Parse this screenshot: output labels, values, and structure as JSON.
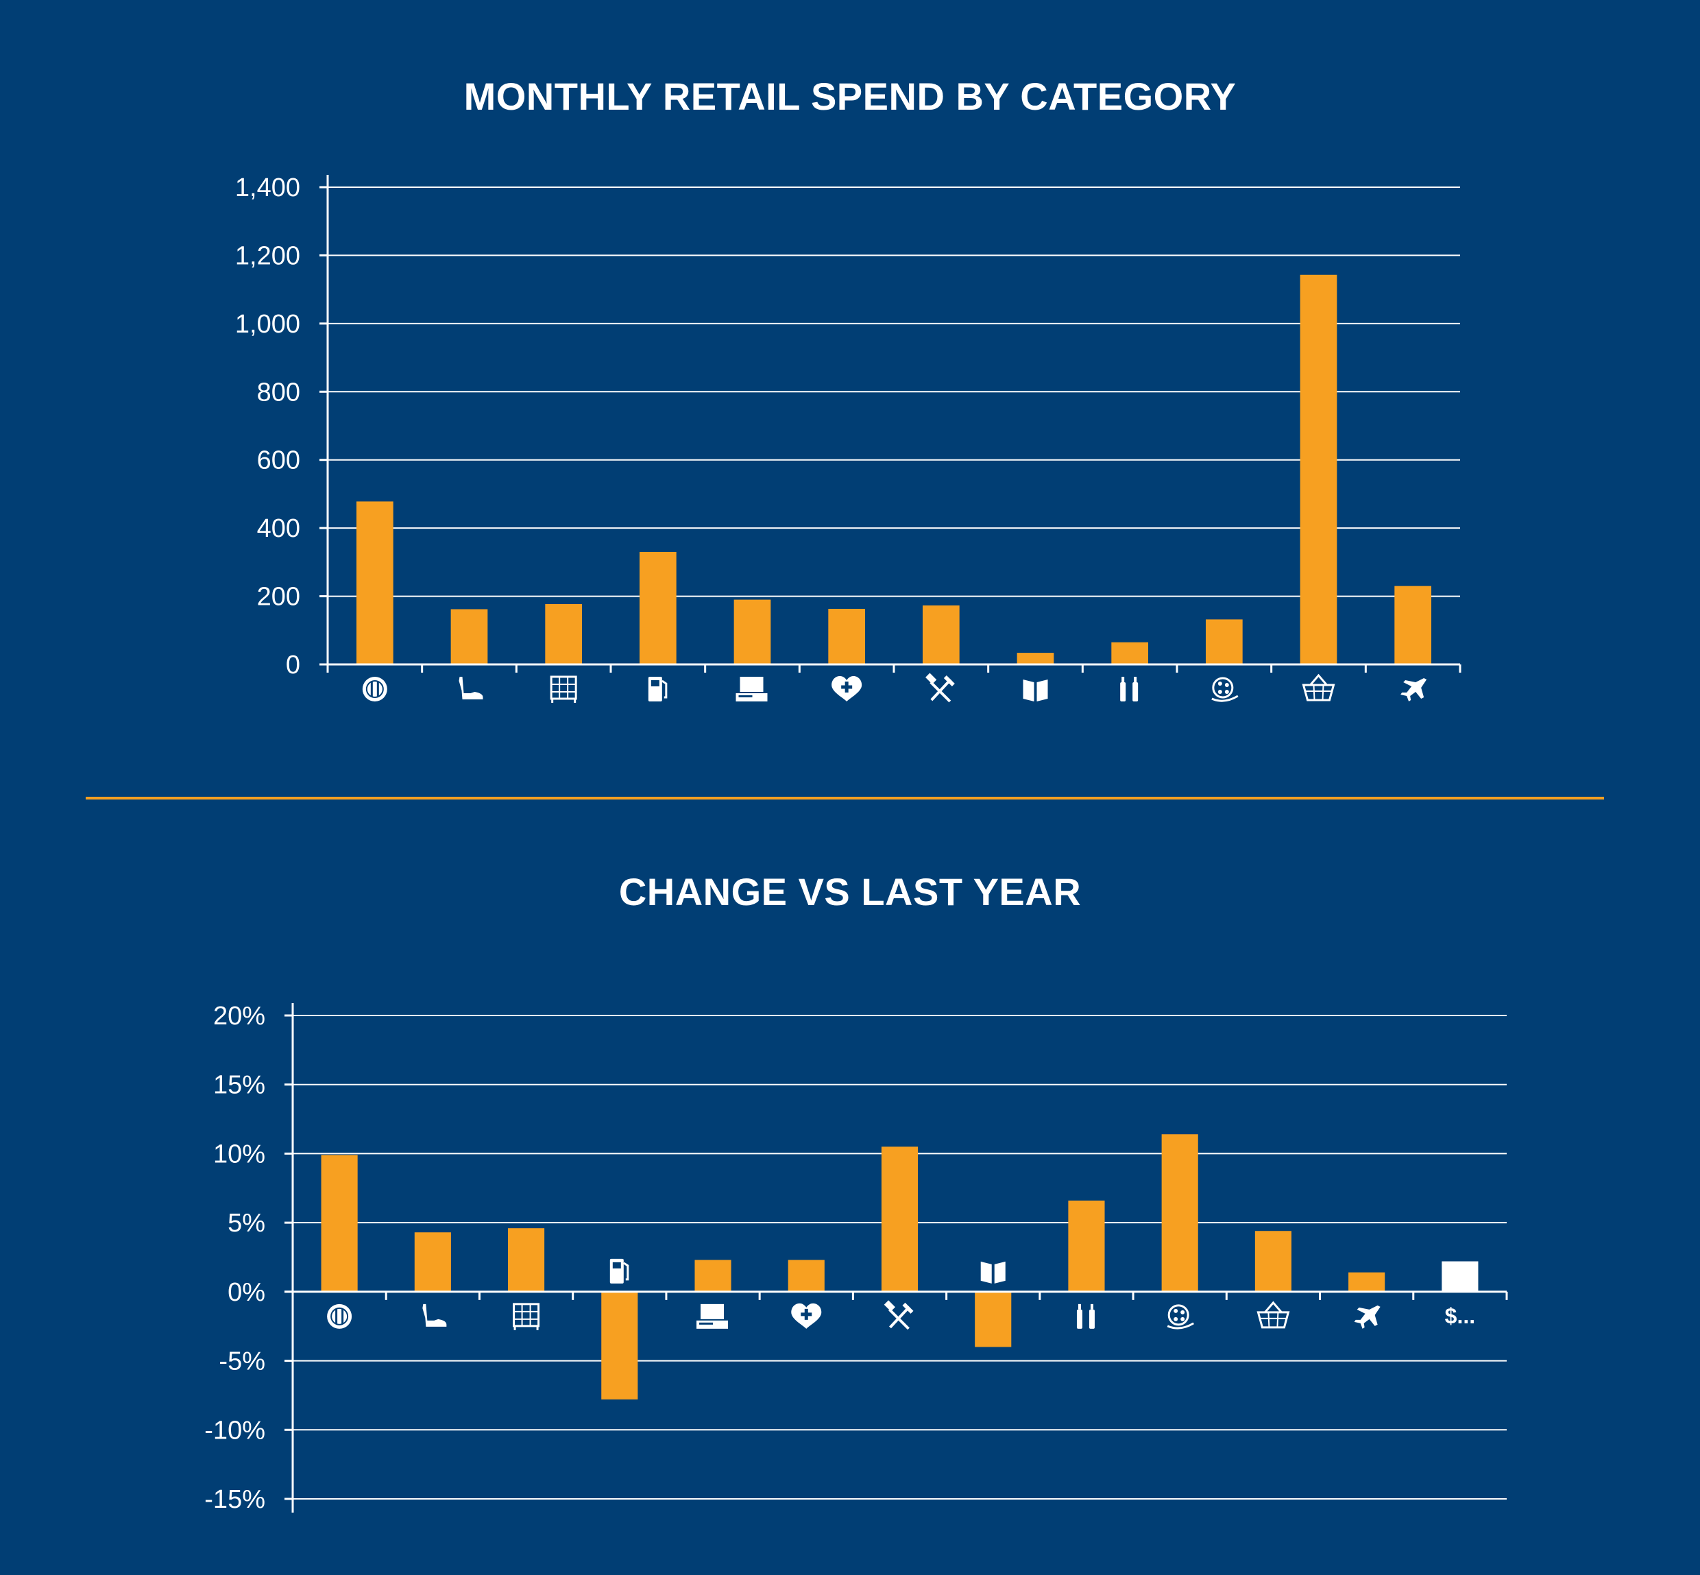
{
  "colors": {
    "background": "#013e74",
    "bar": "#f7a021",
    "highlight_bar": "#ffffff",
    "divider": "#f7a021",
    "text": "#ffffff"
  },
  "chart_data": [
    {
      "type": "bar",
      "title": "MONTHLY RETAIL SPEND BY CATEGORY",
      "xlabel": "",
      "ylabel": "",
      "ylim": [
        0,
        1400
      ],
      "yticks": [
        "0",
        "200",
        "400",
        "600",
        "800",
        "1,000",
        "1,200",
        "1,400"
      ],
      "ytick_values": [
        0,
        200,
        400,
        600,
        800,
        1000,
        1200,
        1400
      ],
      "grid": true,
      "categories": [
        "dining-icon",
        "shoe-icon",
        "furniture-icon",
        "fuel-icon",
        "electronics-icon",
        "health-icon",
        "hardware-icon",
        "books-icon",
        "alcohol-icon",
        "entertainment-icon",
        "groceries-icon",
        "travel-icon"
      ],
      "values": [
        478,
        162,
        177,
        330,
        190,
        163,
        173,
        34,
        65,
        132,
        1143,
        230
      ]
    },
    {
      "type": "bar",
      "title": "CHANGE VS LAST YEAR",
      "xlabel": "",
      "ylabel": "",
      "ylim": [
        -15,
        20
      ],
      "yticks": [
        "-15%",
        "-10%",
        "-5%",
        "0%",
        "5%",
        "10%",
        "15%",
        "20%"
      ],
      "ytick_values": [
        -15,
        -10,
        -5,
        0,
        5,
        10,
        15,
        20
      ],
      "grid": true,
      "categories": [
        "dining-icon",
        "shoe-icon",
        "furniture-icon",
        "fuel-icon",
        "electronics-icon",
        "health-icon",
        "hardware-icon",
        "books-icon",
        "alcohol-icon",
        "entertainment-icon",
        "groceries-icon",
        "travel-icon",
        "$..."
      ],
      "values": [
        9.9,
        4.3,
        4.6,
        -7.8,
        2.3,
        2.3,
        10.5,
        -4.0,
        6.6,
        11.4,
        4.4,
        1.4,
        2.2
      ],
      "highlight_category": "$..."
    }
  ]
}
